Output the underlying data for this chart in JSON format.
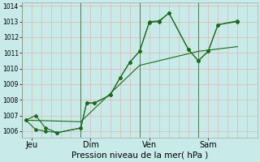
{
  "title": "",
  "xlabel": "Pression niveau de la mer( hPa )",
  "bg_color": "#c8eae8",
  "grid_color_v": "#e8a8a8",
  "grid_color_h": "#e8a8a8",
  "line_color": "#1a6b1a",
  "ylim": [
    1005.6,
    1014.2
  ],
  "yticks": [
    1006,
    1007,
    1008,
    1009,
    1010,
    1011,
    1012,
    1013,
    1014
  ],
  "day_labels": [
    "Jeu",
    "Dim",
    "Ven",
    "Sam"
  ],
  "day_positions": [
    0.5,
    3.5,
    6.5,
    9.5
  ],
  "day_vlines": [
    0,
    3,
    6,
    9,
    12
  ],
  "xlim": [
    0,
    12
  ],
  "series1": {
    "x": [
      0.2,
      0.7,
      1.2,
      1.8,
      3.0,
      3.3,
      3.7,
      4.5,
      5.0,
      5.5,
      6.0,
      6.5,
      7.0,
      7.5,
      8.5,
      9.0,
      9.5,
      10.0,
      11.0
    ],
    "y": [
      1006.7,
      1007.0,
      1006.2,
      1005.9,
      1006.2,
      1007.8,
      1007.8,
      1008.3,
      1009.4,
      1010.4,
      1011.1,
      1012.95,
      1013.0,
      1013.55,
      1011.2,
      1010.5,
      1011.1,
      1012.8,
      1013.0
    ]
  },
  "series2": {
    "x": [
      0.2,
      0.7,
      1.2,
      1.8,
      3.0,
      3.3,
      3.7,
      4.5,
      5.0,
      5.5,
      6.0,
      6.5,
      7.0,
      7.5,
      8.5,
      9.0,
      9.5,
      10.0,
      11.0
    ],
    "y": [
      1006.7,
      1006.1,
      1006.0,
      1005.9,
      1006.2,
      1007.8,
      1007.8,
      1008.3,
      1009.4,
      1010.4,
      1011.1,
      1013.0,
      1013.05,
      1013.55,
      1011.2,
      1010.5,
      1011.1,
      1012.8,
      1013.05
    ]
  },
  "series3": {
    "x": [
      0.2,
      3.0,
      6.0,
      9.0,
      11.0
    ],
    "y": [
      1006.7,
      1006.6,
      1010.2,
      1011.1,
      1011.4
    ]
  },
  "ylabel_fontsize": 7,
  "xlabel_fontsize": 7.5,
  "ytick_fontsize": 5.5,
  "xtick_fontsize": 7
}
